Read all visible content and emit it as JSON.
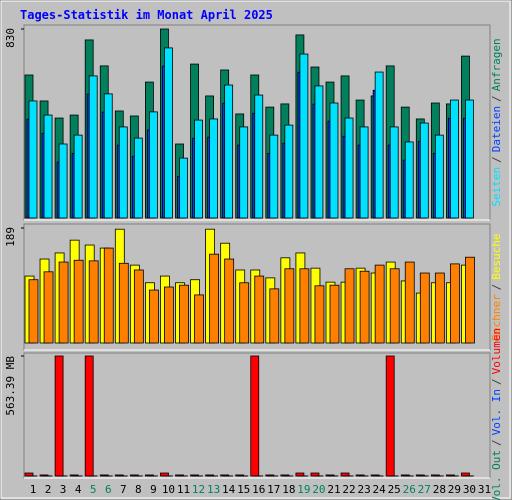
{
  "title": "Tages-Statistik im Monat April 2025",
  "legend_separator": "/",
  "chart_data": [
    {
      "type": "bar",
      "ylim": [
        0,
        830
      ],
      "yticks": [
        830
      ],
      "series": [
        {
          "name": "Anfragen",
          "color": "#00805c",
          "values": [
            628,
            514,
            439,
            452,
            782,
            668,
            470,
            448,
            597,
            830,
            325,
            676,
            536,
            650,
            457,
            628,
            487,
            501,
            804,
            663,
            597,
            624,
            518,
            536,
            668,
            487,
            435,
            505,
            501,
            711,
            null
          ]
        },
        {
          "name": "Dateien",
          "color": "#0040ff",
          "values": [
            434,
            372,
            245,
            284,
            544,
            465,
            320,
            271,
            386,
            667,
            183,
            350,
            355,
            504,
            320,
            460,
            284,
            328,
            640,
            500,
            425,
            359,
            320,
            561,
            320,
            254,
            337,
            284,
            438,
            438,
            null
          ]
        },
        {
          "name": "Seiten",
          "color": "#00e0ff",
          "values": [
            514,
            452,
            325,
            364,
            624,
            545,
            400,
            351,
            466,
            747,
            263,
            430,
            435,
            584,
            400,
            540,
            364,
            408,
            720,
            580,
            505,
            439,
            400,
            641,
            400,
            334,
            417,
            364,
            518,
            518,
            null
          ]
        }
      ]
    },
    {
      "type": "bar",
      "ylim": [
        0,
        189
      ],
      "yticks": [
        189
      ],
      "series": [
        {
          "name": "Besuche",
          "color": "#ffff00",
          "values": [
            110,
            138,
            148,
            169,
            161,
            156,
            187,
            128,
            99,
            110,
            99,
            104,
            187,
            164,
            120,
            120,
            107,
            140,
            148,
            123,
            100,
            100,
            123,
            115,
            133,
            102,
            82,
            99,
            99,
            128,
            null
          ]
        },
        {
          "name": "Rechner",
          "color": "#ff8000",
          "values": [
            104,
            117,
            133,
            136,
            135,
            156,
            131,
            120,
            87,
            92,
            95,
            79,
            146,
            138,
            99,
            110,
            89,
            122,
            122,
            94,
            95,
            122,
            118,
            128,
            122,
            133,
            115,
            115,
            130,
            141,
            null
          ]
        }
      ]
    },
    {
      "type": "bar",
      "ylim": [
        0,
        563.39
      ],
      "yticks": [
        {
          "value": 563.39,
          "label": "563.39 MB"
        }
      ],
      "categories": [
        "1",
        "2",
        "3",
        "4",
        "5",
        "6",
        "7",
        "8",
        "9",
        "10",
        "11",
        "12",
        "13",
        "14",
        "15",
        "16",
        "17",
        "18",
        "19",
        "20",
        "21",
        "22",
        "23",
        "24",
        "25",
        "26",
        "27",
        "28",
        "29",
        "30",
        "31"
      ],
      "weekend": [
        4,
        5,
        11,
        12,
        18,
        19,
        25,
        26
      ],
      "weekend_color": "#008060",
      "series": [
        {
          "name": "Volumen",
          "color": "#ff0000",
          "values": [
            14,
            5,
            563.39,
            5,
            563.39,
            5,
            5,
            5,
            5,
            14,
            5,
            5,
            5,
            5,
            5,
            563.39,
            5,
            5,
            14,
            14,
            5,
            14,
            5,
            5,
            563.39,
            5,
            5,
            5,
            5,
            14,
            null
          ]
        },
        {
          "name": "Vol. In",
          "color": "#0040ff",
          "values": [
            0.5,
            0.5,
            0.5,
            0.5,
            0.5,
            0.5,
            0.5,
            0.5,
            0.5,
            0.5,
            0.5,
            0.5,
            0.5,
            0.5,
            0.5,
            0.5,
            0.5,
            0.5,
            0.5,
            0.5,
            0.5,
            0.5,
            0.5,
            0.5,
            0.5,
            0.5,
            0.5,
            0.5,
            0.5,
            0.5,
            null
          ]
        },
        {
          "name": "Vol. Out",
          "color": "#00805c",
          "values": [
            0.5,
            0.5,
            0.5,
            0.5,
            0.5,
            0.5,
            0.5,
            0.5,
            0.5,
            0.5,
            0.5,
            0.5,
            0.5,
            0.5,
            0.5,
            0.5,
            0.5,
            0.5,
            0.5,
            0.5,
            0.5,
            0.5,
            0.5,
            0.5,
            0.5,
            0.5,
            0.5,
            0.5,
            0.5,
            0.5,
            null
          ]
        }
      ]
    }
  ]
}
